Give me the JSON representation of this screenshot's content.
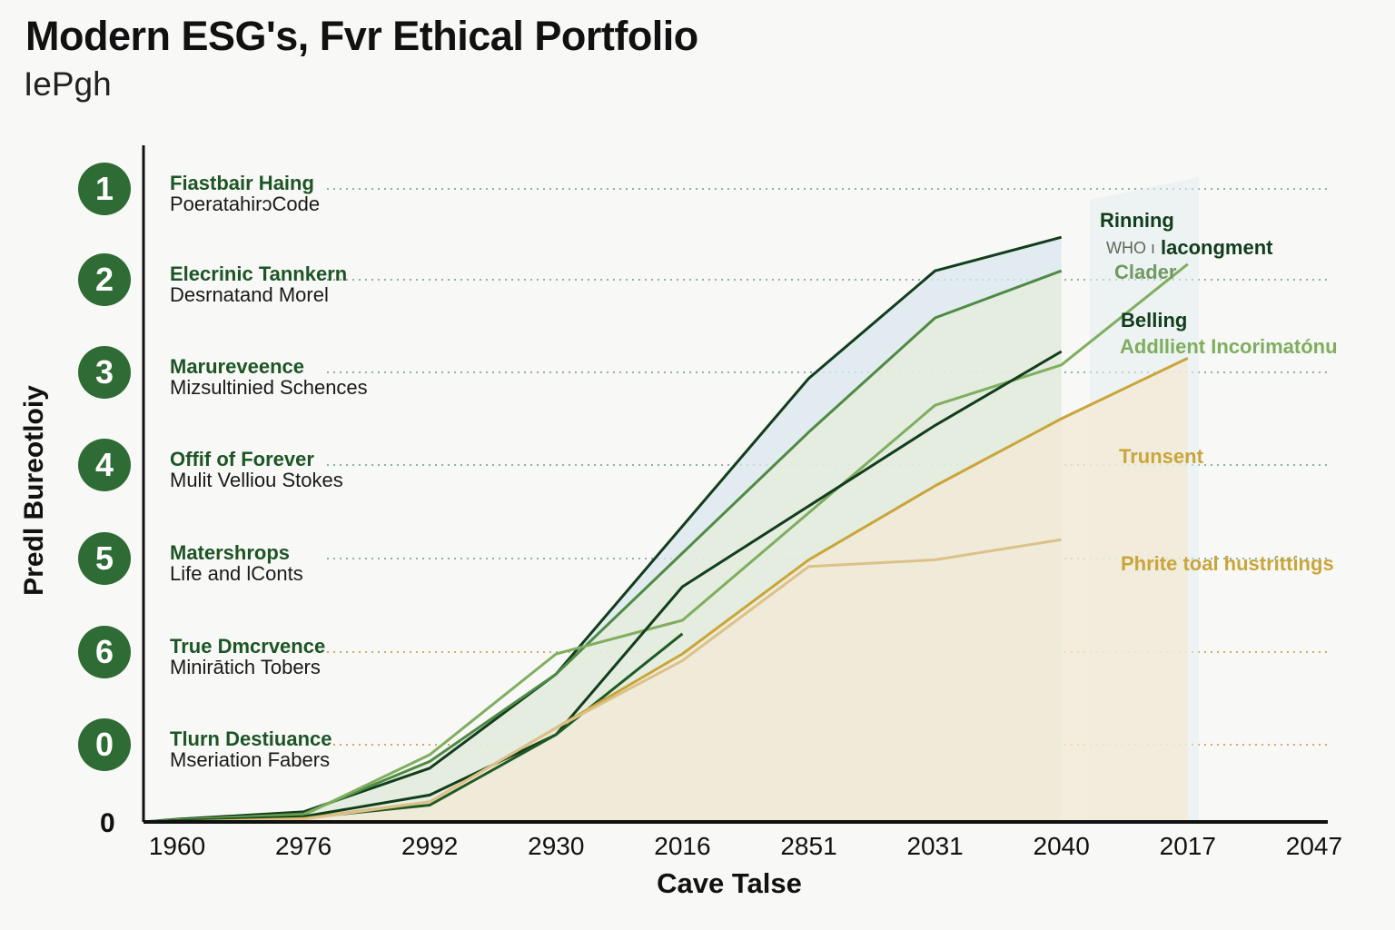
{
  "title": "Modern ESG's, Fvr Ethical Portfolio",
  "subtitle": "IePgh",
  "colors": {
    "dark_green": "#123d1c",
    "mid_green": "#4f8a45",
    "light_green": "#7fae5f",
    "gold": "#c9a53a",
    "tan": "#dcc18a",
    "badge": "#2f6b35"
  },
  "rows": [
    {
      "num": "1",
      "title": "Fiastbair Haing",
      "sub": "PoeratahirɔCode"
    },
    {
      "num": "2",
      "title": "Elecrinic Tannkern",
      "sub": "Desrnatand Morel"
    },
    {
      "num": "3",
      "title": "Marureveence",
      "sub": "Mizsultinied Schences"
    },
    {
      "num": "4",
      "title": "Offif of Forever",
      "sub": "Mulit Velliou Stokes"
    },
    {
      "num": "5",
      "title": "Matershrops",
      "sub": "Life and lConts"
    },
    {
      "num": "6",
      "title": "True Dmcrvence",
      "sub": "Minirātich Tobers"
    },
    {
      "num": "0",
      "title": "Tlurn Destiuance",
      "sub": "Mseriation Fabers"
    }
  ],
  "annotations": {
    "rinning": "Rinning",
    "who": "WHO ı",
    "lacongment": "lacongment",
    "clader": "Clader",
    "belling": "Belling",
    "addllient": "Addllient Incorimatónu",
    "trunsent": "Trunsent",
    "phrite": "Phrite toal hustrittings"
  },
  "chart_data": {
    "type": "line",
    "title": "Modern ESG's, Fvr Ethical Portfolio",
    "subtitle": "IePgh",
    "xlabel": "Cave Talse",
    "ylabel": "Predl Bureotloiy",
    "y_tick_labels": [
      "0"
    ],
    "categories": [
      "1960",
      "2976",
      "2992",
      "2930",
      "2016",
      "2851",
      "2031",
      "2040",
      "2017",
      "2047"
    ],
    "grid": "dotted horizontal lines at each numbered row",
    "series": [
      {
        "name": "Rinning",
        "color": "#123d1c",
        "fill": "#dbe8ee",
        "values": [
          0.4,
          1.5,
          8,
          22,
          44,
          66,
          82,
          87,
          null,
          null
        ]
      },
      {
        "name": "Clader",
        "color": "#4f8a45",
        "fill": "#e4eedb",
        "values": [
          0.3,
          1.2,
          9,
          22,
          40,
          58,
          75,
          82,
          null,
          null
        ]
      },
      {
        "name": "WHO ı lacongment",
        "color": "#7fae5f",
        "fill": null,
        "values": [
          0.3,
          1.0,
          10,
          25,
          30,
          46,
          62,
          68,
          83,
          null
        ]
      },
      {
        "name": "Belling",
        "color": "#123d1c",
        "fill": null,
        "values": [
          0.2,
          0.8,
          4,
          13,
          35,
          47,
          59,
          70,
          null,
          null
        ]
      },
      {
        "name": "",
        "color": "#1f5a25",
        "fill": null,
        "values": [
          0.2,
          0.6,
          2.5,
          13,
          28,
          null,
          null,
          null,
          null,
          null
        ]
      },
      {
        "name": "Trunsent",
        "color": "#c9a53a",
        "fill": "#f3ead5",
        "values": [
          0,
          0.5,
          3,
          14,
          25,
          39,
          50,
          60,
          69,
          null
        ]
      },
      {
        "name": "Phrite toal hustrittings",
        "color": "#dcc18a",
        "fill": null,
        "values": [
          0,
          0.4,
          3,
          14,
          24,
          38,
          39,
          42,
          null,
          null
        ]
      }
    ]
  }
}
